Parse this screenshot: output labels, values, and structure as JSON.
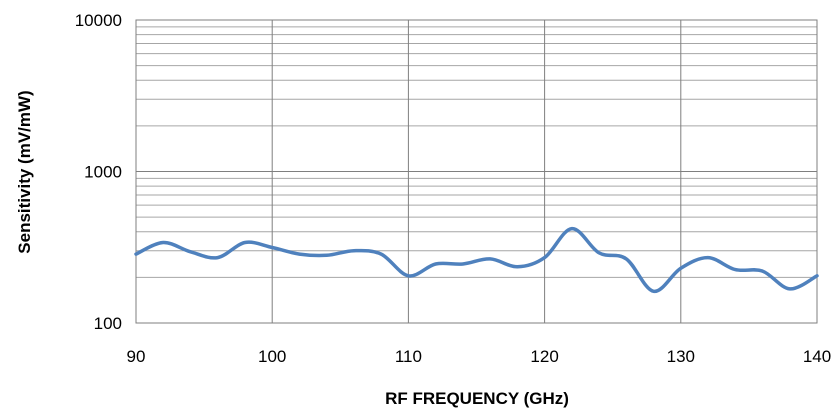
{
  "chart_data": {
    "type": "line",
    "title": "",
    "xlabel": "RF FREQUENCY (GHz)",
    "ylabel": "Sensitivity (mV/mW)",
    "xlim": [
      90,
      140
    ],
    "ylim": [
      100,
      10000
    ],
    "y_scale": "log",
    "grid": true,
    "legend": "none",
    "x_ticks": [
      "90",
      "100",
      "110",
      "120",
      "130",
      "140"
    ],
    "y_ticks": [
      "100",
      "1000",
      "10000"
    ],
    "series": [
      {
        "color": "#4f81bd",
        "x": [
          90,
          92,
          94,
          96,
          98,
          100,
          102,
          104,
          106,
          108,
          110,
          112,
          114,
          116,
          118,
          120,
          122,
          124,
          126,
          128,
          130,
          132,
          134,
          136,
          138,
          140
        ],
        "y": [
          285,
          340,
          295,
          270,
          340,
          315,
          285,
          280,
          300,
          285,
          205,
          245,
          245,
          265,
          235,
          270,
          420,
          290,
          265,
          162,
          230,
          270,
          225,
          220,
          168,
          205
        ]
      }
    ]
  }
}
